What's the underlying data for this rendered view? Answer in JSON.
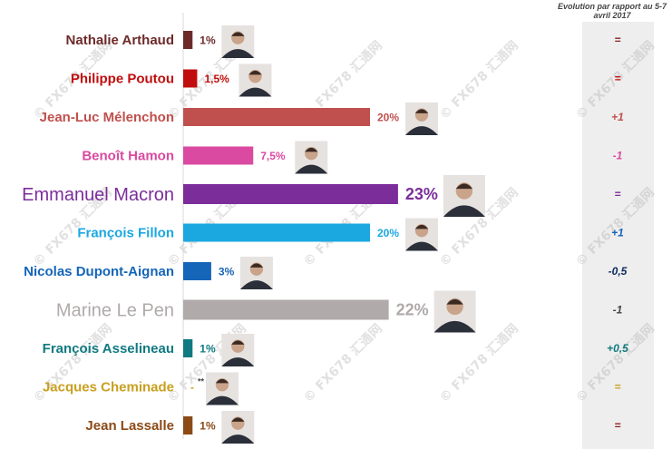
{
  "chart_data": {
    "type": "bar",
    "orientation": "horizontal",
    "evolution_header": "Evolution par rapport au 5-7 avril 2017",
    "watermark_text": "© FX678 汇通网",
    "categories": [
      "Nathalie Arthaud",
      "Philippe Poutou",
      "Jean-Luc Mélenchon",
      "Benoît Hamon",
      "Emmanuel Macron",
      "François Fillon",
      "Nicolas Dupont-Aignan",
      "Marine Le Pen",
      "François Asselineau",
      "Jacques Cheminade",
      "Jean Lassalle"
    ],
    "values": [
      1,
      1.5,
      20,
      7.5,
      23,
      20,
      3,
      22,
      1,
      0,
      1
    ],
    "value_labels": [
      "1%",
      "1,5%",
      "20%",
      "7,5%",
      "23%",
      "20%",
      "3%",
      "22%",
      "1%",
      "-",
      "1%"
    ],
    "value_notes": [
      "",
      "",
      "",
      "",
      "",
      "",
      "",
      "",
      "",
      "**",
      ""
    ],
    "colors": [
      "#6e2a2a",
      "#c00d0d",
      "#c0504d",
      "#d94aa0",
      "#7b2d9a",
      "#1ba8e0",
      "#1565b8",
      "#b0aaaa",
      "#0f7a80",
      "#c9a020",
      "#8b4a16"
    ],
    "evolution": [
      "=",
      "=",
      "+1",
      "-1",
      "=",
      "+1",
      "-0,5",
      "-1",
      "+0,5",
      "=",
      "="
    ],
    "evolution_colors": [
      "#8b2020",
      "#cc1111",
      "#c0504d",
      "#d94aa0",
      "#7b2d9a",
      "#1565b8",
      "#0d2a5c",
      "#444444",
      "#0f7a80",
      "#c9a020",
      "#8b2020"
    ],
    "highlight": [
      false,
      false,
      false,
      false,
      true,
      false,
      false,
      true,
      false,
      false,
      false
    ],
    "xlim": [
      0,
      28
    ],
    "legend": "none",
    "grid": false
  }
}
